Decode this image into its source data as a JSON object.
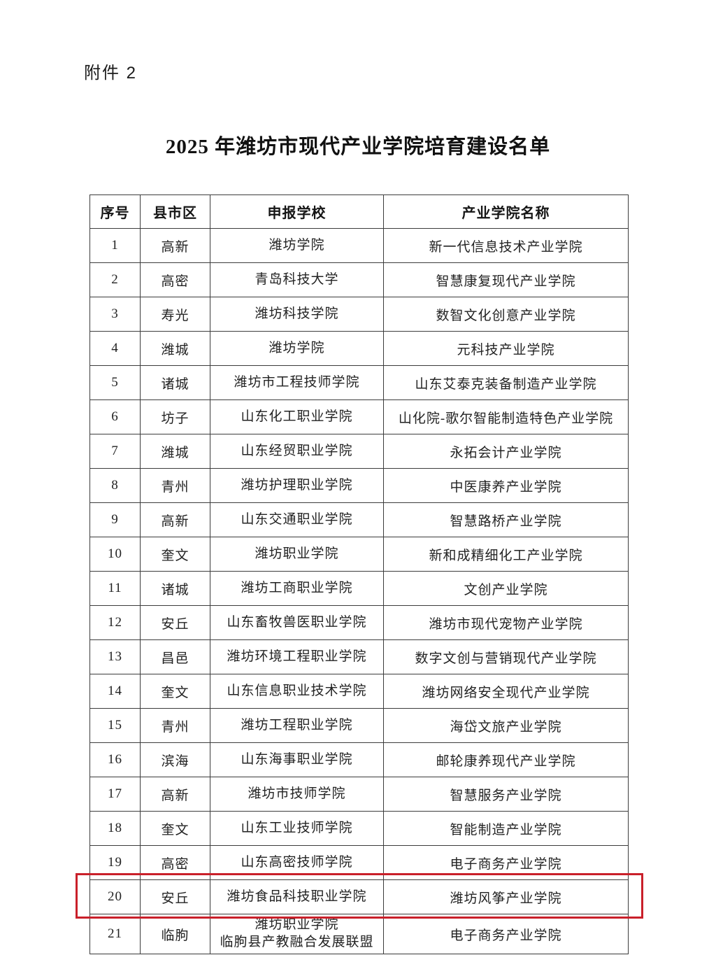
{
  "page": {
    "attachment_label": "附件 2",
    "title": "2025 年潍坊市现代产业学院培育建设名单"
  },
  "table": {
    "headers": [
      "序号",
      "县市区",
      "申报学校",
      "产业学院名称"
    ],
    "rows": [
      {
        "no": "1",
        "district": "高新",
        "school": "潍坊学院",
        "college": "新一代信息技术产业学院"
      },
      {
        "no": "2",
        "district": "高密",
        "school": "青岛科技大学",
        "college": "智慧康复现代产业学院"
      },
      {
        "no": "3",
        "district": "寿光",
        "school": "潍坊科技学院",
        "college": "数智文化创意产业学院"
      },
      {
        "no": "4",
        "district": "潍城",
        "school": "潍坊学院",
        "college": "元科技产业学院"
      },
      {
        "no": "5",
        "district": "诸城",
        "school": "潍坊市工程技师学院",
        "college": "山东艾泰克装备制造产业学院"
      },
      {
        "no": "6",
        "district": "坊子",
        "school": "山东化工职业学院",
        "college": "山化院-歌尔智能制造特色产业学院"
      },
      {
        "no": "7",
        "district": "潍城",
        "school": "山东经贸职业学院",
        "college": "永拓会计产业学院"
      },
      {
        "no": "8",
        "district": "青州",
        "school": "潍坊护理职业学院",
        "college": "中医康养产业学院"
      },
      {
        "no": "9",
        "district": "高新",
        "school": "山东交通职业学院",
        "college": "智慧路桥产业学院"
      },
      {
        "no": "10",
        "district": "奎文",
        "school": "潍坊职业学院",
        "college": "新和成精细化工产业学院"
      },
      {
        "no": "11",
        "district": "诸城",
        "school": "潍坊工商职业学院",
        "college": "文创产业学院"
      },
      {
        "no": "12",
        "district": "安丘",
        "school": "山东畜牧兽医职业学院",
        "college": "潍坊市现代宠物产业学院"
      },
      {
        "no": "13",
        "district": "昌邑",
        "school": "潍坊环境工程职业学院",
        "college": "数字文创与营销现代产业学院"
      },
      {
        "no": "14",
        "district": "奎文",
        "school": "山东信息职业技术学院",
        "college": "潍坊网络安全现代产业学院"
      },
      {
        "no": "15",
        "district": "青州",
        "school": "潍坊工程职业学院",
        "college": "海岱文旅产业学院"
      },
      {
        "no": "16",
        "district": "滨海",
        "school": "山东海事职业学院",
        "college": "邮轮康养现代产业学院"
      },
      {
        "no": "17",
        "district": "高新",
        "school": "潍坊市技师学院",
        "college": "智慧服务产业学院"
      },
      {
        "no": "18",
        "district": "奎文",
        "school": "山东工业技师学院",
        "college": "智能制造产业学院"
      },
      {
        "no": "19",
        "district": "高密",
        "school": "山东高密技师学院",
        "college": "电子商务产业学院"
      },
      {
        "no": "20",
        "district": "安丘",
        "school": "潍坊食品科技职业学院",
        "college": "潍坊风筝产业学院"
      },
      {
        "no": "21",
        "district": "临朐",
        "school": "潍坊职业学院\n临朐县产教融合发展联盟",
        "college": "电子商务产业学院"
      }
    ],
    "highlighted_row_no": "20",
    "highlight_color": "#c9202a"
  }
}
